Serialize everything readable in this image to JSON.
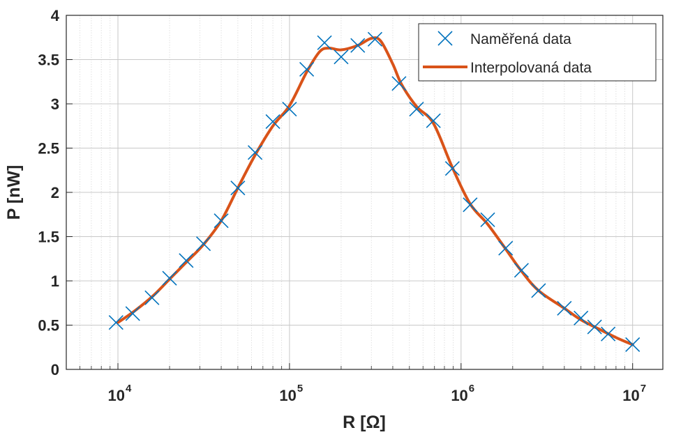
{
  "chart_data": {
    "type": "line",
    "xscale": "log",
    "xlabel": "R [Ω]",
    "ylabel": "P [nW]",
    "xlim": [
      5000,
      15000000
    ],
    "ylim": [
      0,
      4
    ],
    "grid": true,
    "minor_grid_x": true,
    "legend_placement": "top-right",
    "x_ticks": [
      {
        "value": 10000,
        "base": "10",
        "exp": "4"
      },
      {
        "value": 100000,
        "base": "10",
        "exp": "5"
      },
      {
        "value": 1000000,
        "base": "10",
        "exp": "6"
      },
      {
        "value": 10000000,
        "base": "10",
        "exp": "7"
      }
    ],
    "y_ticks": [
      {
        "value": 0,
        "label": "0"
      },
      {
        "value": 0.5,
        "label": "0.5"
      },
      {
        "value": 1,
        "label": "1"
      },
      {
        "value": 1.5,
        "label": "1.5"
      },
      {
        "value": 2,
        "label": "2"
      },
      {
        "value": 2.5,
        "label": "2.5"
      },
      {
        "value": 3,
        "label": "3"
      },
      {
        "value": 3.5,
        "label": "3.5"
      },
      {
        "value": 4,
        "label": "4"
      }
    ],
    "series": [
      {
        "name": "Naměřená data",
        "style": "markers",
        "marker": "x",
        "color": "#0072BD",
        "points": [
          [
            9750,
            0.53
          ],
          [
            12200,
            0.63
          ],
          [
            15800,
            0.81
          ],
          [
            20000,
            1.03
          ],
          [
            25000,
            1.23
          ],
          [
            31500,
            1.42
          ],
          [
            40000,
            1.68
          ],
          [
            50000,
            2.05
          ],
          [
            63000,
            2.45
          ],
          [
            80000,
            2.8
          ],
          [
            100000,
            2.94
          ],
          [
            126000,
            3.39
          ],
          [
            160000,
            3.69
          ],
          [
            200000,
            3.53
          ],
          [
            250000,
            3.66
          ],
          [
            315000,
            3.73
          ],
          [
            435000,
            3.23
          ],
          [
            550000,
            2.94
          ],
          [
            690000,
            2.81
          ],
          [
            890000,
            2.27
          ],
          [
            1130000,
            1.86
          ],
          [
            1430000,
            1.69
          ],
          [
            1820000,
            1.37
          ],
          [
            2250000,
            1.12
          ],
          [
            2830000,
            0.89
          ],
          [
            4000000,
            0.69
          ],
          [
            5000000,
            0.58
          ],
          [
            6000000,
            0.48
          ],
          [
            7200000,
            0.4
          ],
          [
            10000000,
            0.28
          ]
        ]
      },
      {
        "name": "Interpolovaná data",
        "style": "line",
        "color": "#D95319",
        "points": [
          [
            10000,
            0.53
          ],
          [
            12500,
            0.66
          ],
          [
            16000,
            0.83
          ],
          [
            20000,
            1.02
          ],
          [
            25000,
            1.21
          ],
          [
            31500,
            1.41
          ],
          [
            40000,
            1.68
          ],
          [
            50000,
            2.05
          ],
          [
            63000,
            2.42
          ],
          [
            80000,
            2.75
          ],
          [
            100000,
            2.98
          ],
          [
            126000,
            3.36
          ],
          [
            150000,
            3.59
          ],
          [
            170000,
            3.63
          ],
          [
            200000,
            3.61
          ],
          [
            250000,
            3.66
          ],
          [
            300000,
            3.74
          ],
          [
            340000,
            3.71
          ],
          [
            400000,
            3.45
          ],
          [
            450000,
            3.22
          ],
          [
            550000,
            2.97
          ],
          [
            690000,
            2.78
          ],
          [
            890000,
            2.28
          ],
          [
            1130000,
            1.87
          ],
          [
            1430000,
            1.64
          ],
          [
            1820000,
            1.36
          ],
          [
            2250000,
            1.11
          ],
          [
            2830000,
            0.89
          ],
          [
            4000000,
            0.69
          ],
          [
            5000000,
            0.56
          ],
          [
            6300000,
            0.46
          ],
          [
            8000000,
            0.36
          ],
          [
            10000000,
            0.28
          ]
        ]
      }
    ]
  }
}
